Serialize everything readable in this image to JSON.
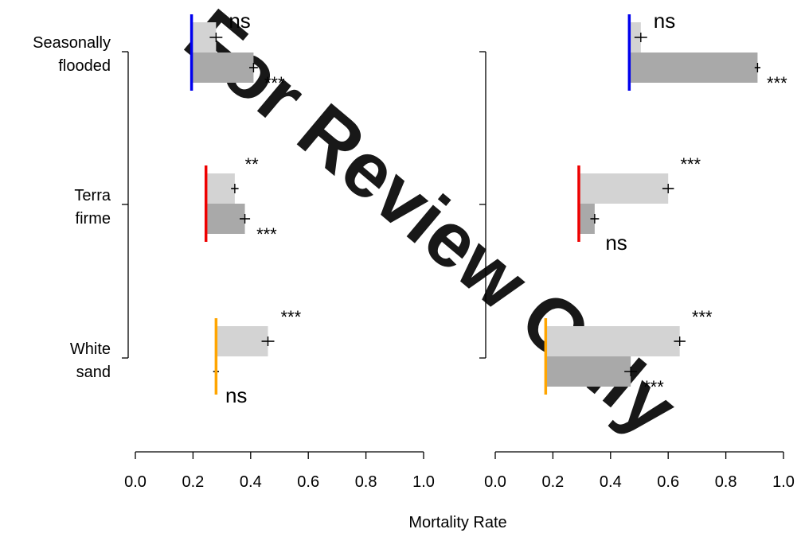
{
  "chart_data": {
    "type": "bar",
    "orientation": "horizontal",
    "xlabel": "Mortality Rate",
    "xlim": [
      0,
      1
    ],
    "xticks": [
      "0.0",
      "0.2",
      "0.4",
      "0.6",
      "0.8",
      "1.0"
    ],
    "groups": [
      {
        "label_lines": [
          "Seasonally",
          "flooded"
        ],
        "reference_color": "#0000ee"
      },
      {
        "label_lines": [
          "Terra",
          "firme"
        ],
        "reference_color": "#ee0000"
      },
      {
        "label_lines": [
          "White",
          "sand"
        ],
        "reference_color": "#ffa500"
      }
    ],
    "bar_colors": {
      "light": "#d3d3d3",
      "dark": "#a9a9a9"
    },
    "panels": [
      {
        "groups": [
          {
            "reference": 0.195,
            "bars": [
              {
                "shade": "light",
                "value": 0.28,
                "err": 0.022,
                "sig": "ns"
              },
              {
                "shade": "dark",
                "value": 0.41,
                "err": 0.015,
                "sig": "***"
              }
            ]
          },
          {
            "reference": 0.245,
            "bars": [
              {
                "shade": "light",
                "value": 0.345,
                "err": 0.013,
                "sig": "**"
              },
              {
                "shade": "dark",
                "value": 0.38,
                "err": 0.018,
                "sig": "***"
              }
            ]
          },
          {
            "reference": 0.28,
            "bars": [
              {
                "shade": "light",
                "value": 0.46,
                "err": 0.022,
                "sig": "***"
              },
              {
                "shade": "dark",
                "value": 0.28,
                "err": 0.01,
                "sig": "ns"
              }
            ]
          }
        ]
      },
      {
        "groups": [
          {
            "reference": 0.465,
            "bars": [
              {
                "shade": "light",
                "value": 0.505,
                "err": 0.022,
                "sig": "ns"
              },
              {
                "shade": "dark",
                "value": 0.91,
                "err": 0.01,
                "sig": "***"
              }
            ]
          },
          {
            "reference": 0.29,
            "bars": [
              {
                "shade": "light",
                "value": 0.6,
                "err": 0.02,
                "sig": "***"
              },
              {
                "shade": "dark",
                "value": 0.345,
                "err": 0.015,
                "sig": "ns"
              }
            ]
          },
          {
            "reference": 0.175,
            "bars": [
              {
                "shade": "light",
                "value": 0.64,
                "err": 0.02,
                "sig": "***"
              },
              {
                "shade": "dark",
                "value": 0.47,
                "err": 0.022,
                "sig": "***"
              }
            ]
          }
        ]
      }
    ]
  },
  "watermark": {
    "text": "For Review Only",
    "color": "#6fd0f5"
  }
}
